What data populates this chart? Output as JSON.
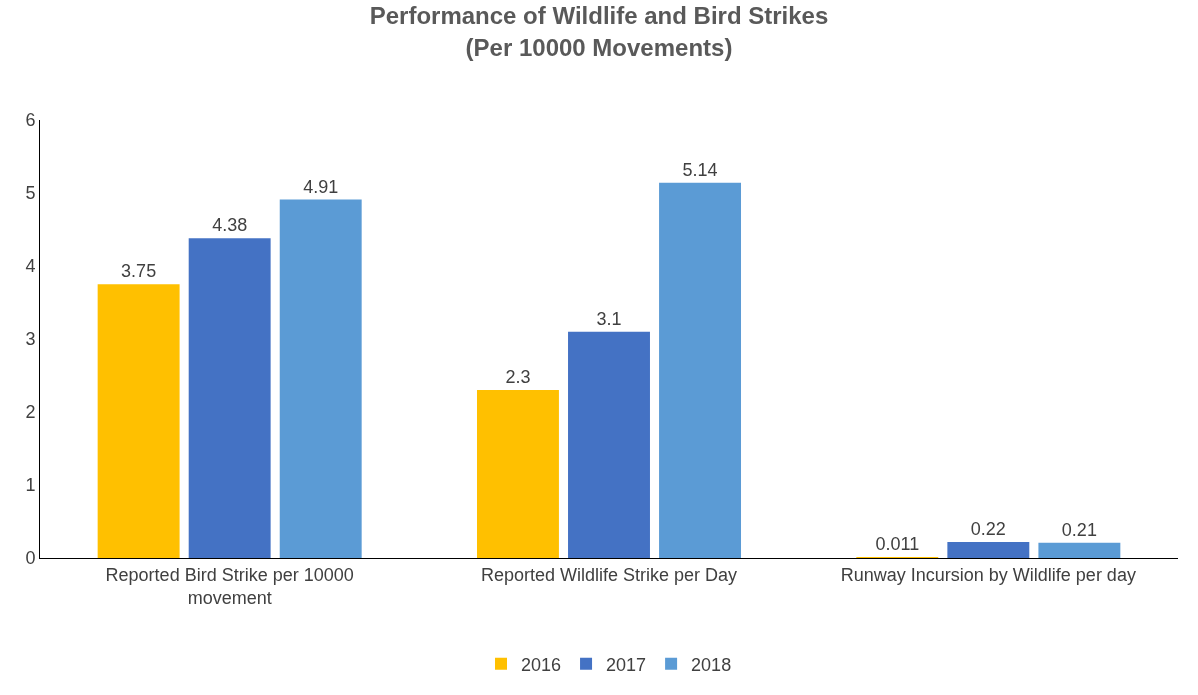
{
  "chart_data": {
    "type": "bar",
    "title": "Performance of Wildlife and Bird Strikes\n(Per 10000 Movements)",
    "categories": [
      "Reported Bird Strike per 10000 movement",
      "Reported Wildlife Strike per Day",
      "Runway Incursion by Wildlife per day"
    ],
    "series": [
      {
        "name": "2016",
        "color": "#ffc000",
        "values": [
          3.75,
          2.3,
          0.011
        ]
      },
      {
        "name": "2017",
        "color": "#4472c4",
        "values": [
          4.38,
          3.1,
          0.22
        ]
      },
      {
        "name": "2018",
        "color": "#5b9bd5",
        "values": [
          4.91,
          5.14,
          0.21
        ]
      }
    ],
    "ylim": [
      0,
      6
    ],
    "yticks": [
      0,
      1,
      2,
      3,
      4,
      5,
      6
    ],
    "grid": false,
    "legend": "bottom",
    "data_labels": true
  }
}
